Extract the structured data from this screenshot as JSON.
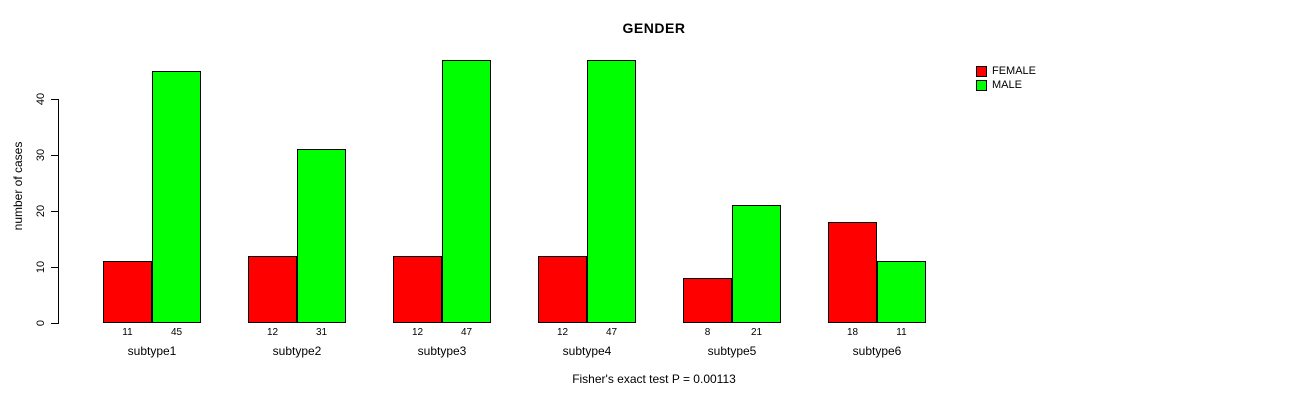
{
  "chart_data": {
    "type": "bar",
    "title": "GENDER",
    "ylabel": "number of cases",
    "xlabel": "",
    "categories": [
      "subtype1",
      "subtype2",
      "subtype3",
      "subtype4",
      "subtype5",
      "subtype6"
    ],
    "series": [
      {
        "name": "FEMALE",
        "color": "#ff0000",
        "values": [
          11,
          12,
          12,
          12,
          8,
          18
        ]
      },
      {
        "name": "MALE",
        "color": "#00ff00",
        "values": [
          45,
          31,
          47,
          47,
          21,
          11
        ]
      }
    ],
    "yticks": [
      0,
      10,
      20,
      30,
      40
    ],
    "ylim": [
      0,
      48
    ],
    "grid": false,
    "bar_value_labels": [
      [
        "11",
        "45"
      ],
      [
        "12",
        "31"
      ],
      [
        "12",
        "47"
      ],
      [
        "12",
        "47"
      ],
      [
        "8",
        "21"
      ],
      [
        "18",
        "11"
      ]
    ],
    "legend_position": "top-right",
    "footer": "Fisher's exact test P = 0.00113"
  }
}
